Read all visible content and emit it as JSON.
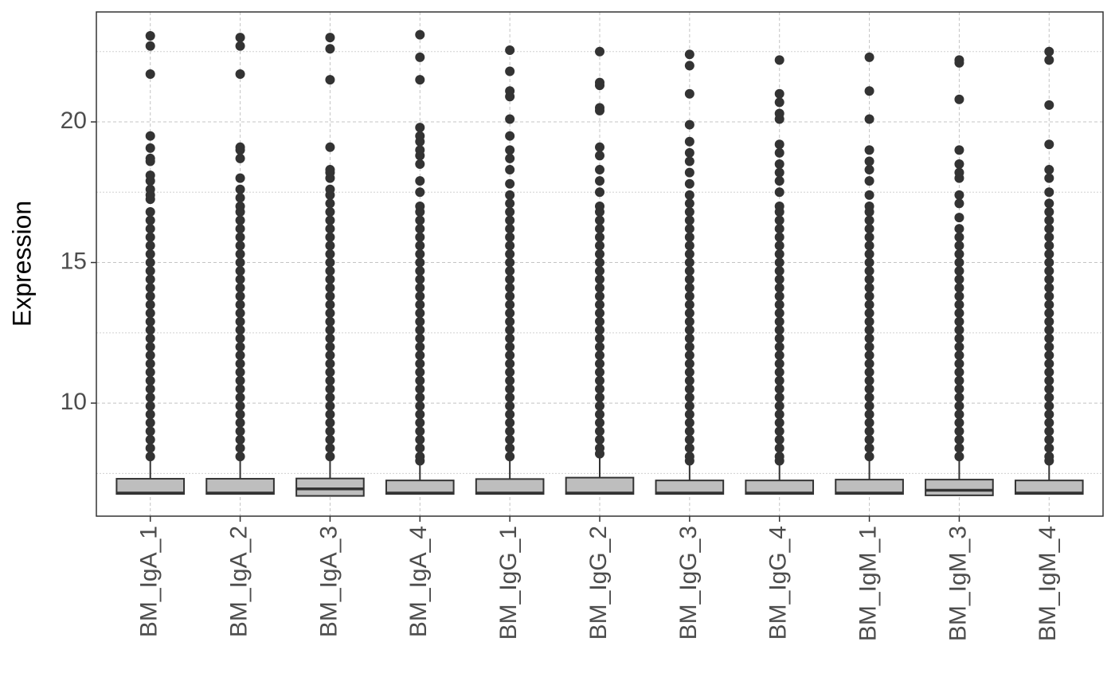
{
  "chart_data": {
    "type": "boxplot",
    "y_label": "Expression",
    "categories": [
      "BM_IgA_1",
      "BM_IgA_2",
      "BM_IgA_3",
      "BM_IgA_4",
      "BM_IgG_1",
      "BM_IgG_2",
      "BM_IgG_3",
      "BM_IgG_4",
      "BM_IgM_1",
      "BM_IgM_3",
      "BM_IgM_4"
    ],
    "min": [
      6.77,
      6.77,
      6.7,
      6.77,
      6.77,
      6.77,
      6.77,
      6.77,
      6.77,
      6.72,
      6.77
    ],
    "q1": [
      6.77,
      6.77,
      6.7,
      6.77,
      6.77,
      6.77,
      6.77,
      6.77,
      6.77,
      6.72,
      6.77
    ],
    "median": [
      6.8,
      6.8,
      6.95,
      6.8,
      6.8,
      6.8,
      6.8,
      6.8,
      6.8,
      6.9,
      6.8
    ],
    "q3": [
      7.31,
      7.31,
      7.32,
      7.25,
      7.3,
      7.35,
      7.25,
      7.25,
      7.28,
      7.28,
      7.25
    ],
    "max": [
      8.05,
      8.05,
      8.05,
      7.95,
      8.05,
      8.15,
      7.95,
      7.95,
      8.05,
      8.05,
      7.95
    ],
    "outliers": [
      [
        8.1,
        8.4,
        8.7,
        9.0,
        9.3,
        9.6,
        9.9,
        10.2,
        10.5,
        10.8,
        11.1,
        11.4,
        11.7,
        12.0,
        12.3,
        12.6,
        12.9,
        13.2,
        13.5,
        13.8,
        14.1,
        14.4,
        14.7,
        15.0,
        15.3,
        15.6,
        15.9,
        16.2,
        16.5,
        16.8,
        17.25,
        17.4,
        17.6,
        17.9,
        18.1,
        18.6,
        18.7,
        19.07,
        19.5,
        21.7,
        22.7,
        23.06
      ],
      [
        8.1,
        8.4,
        8.7,
        9.0,
        9.3,
        9.6,
        9.9,
        10.2,
        10.5,
        10.8,
        11.1,
        11.4,
        11.7,
        12.0,
        12.3,
        12.6,
        12.9,
        13.2,
        13.5,
        13.8,
        14.1,
        14.4,
        14.7,
        15.0,
        15.3,
        15.6,
        15.9,
        16.2,
        16.5,
        16.8,
        17.0,
        17.3,
        17.6,
        18.0,
        18.7,
        19.0,
        19.1,
        21.7,
        22.7,
        23.0
      ],
      [
        8.1,
        8.4,
        8.7,
        9.0,
        9.3,
        9.6,
        9.9,
        10.2,
        10.5,
        10.8,
        11.1,
        11.4,
        11.7,
        12.0,
        12.3,
        12.6,
        12.9,
        13.2,
        13.5,
        13.8,
        14.1,
        14.4,
        14.7,
        15.0,
        15.3,
        15.6,
        15.9,
        16.2,
        16.5,
        16.8,
        17.1,
        17.4,
        17.6,
        18.0,
        18.2,
        18.3,
        19.1,
        21.5,
        22.6,
        23.0
      ],
      [
        7.95,
        8.1,
        8.4,
        8.7,
        9.0,
        9.3,
        9.6,
        9.9,
        10.2,
        10.5,
        10.8,
        11.1,
        11.4,
        11.7,
        12.0,
        12.3,
        12.6,
        12.9,
        13.2,
        13.5,
        13.8,
        14.1,
        14.4,
        14.7,
        15.0,
        15.3,
        15.6,
        15.9,
        16.2,
        16.5,
        16.8,
        17.0,
        17.5,
        17.9,
        18.5,
        18.8,
        19.0,
        19.3,
        19.5,
        19.8,
        21.5,
        22.3,
        23.1
      ],
      [
        8.1,
        8.4,
        8.7,
        9.0,
        9.3,
        9.6,
        9.9,
        10.2,
        10.5,
        10.8,
        11.1,
        11.4,
        11.7,
        12.0,
        12.3,
        12.6,
        12.9,
        13.2,
        13.5,
        13.8,
        14.1,
        14.4,
        14.7,
        15.0,
        15.3,
        15.6,
        15.9,
        16.2,
        16.5,
        16.8,
        17.1,
        17.4,
        17.8,
        18.3,
        18.7,
        19.0,
        19.5,
        20.1,
        20.9,
        21.1,
        21.8,
        22.55
      ],
      [
        8.2,
        8.4,
        8.7,
        9.0,
        9.3,
        9.6,
        9.9,
        10.2,
        10.5,
        10.8,
        11.1,
        11.4,
        11.7,
        12.0,
        12.3,
        12.6,
        12.9,
        13.2,
        13.5,
        13.8,
        14.1,
        14.4,
        14.7,
        15.0,
        15.3,
        15.6,
        15.9,
        16.2,
        16.5,
        16.8,
        17.0,
        17.5,
        17.9,
        18.3,
        18.8,
        19.1,
        20.4,
        20.5,
        21.3,
        21.4,
        22.5
      ],
      [
        7.95,
        8.1,
        8.4,
        8.7,
        9.0,
        9.3,
        9.6,
        9.9,
        10.2,
        10.5,
        10.8,
        11.1,
        11.4,
        11.7,
        12.0,
        12.3,
        12.6,
        12.9,
        13.2,
        13.5,
        13.8,
        14.1,
        14.4,
        14.7,
        15.0,
        15.3,
        15.6,
        15.9,
        16.2,
        16.5,
        16.8,
        17.1,
        17.4,
        17.8,
        18.2,
        18.6,
        18.9,
        19.3,
        19.9,
        21.0,
        22.0,
        22.4
      ],
      [
        7.95,
        8.1,
        8.4,
        8.7,
        9.0,
        9.3,
        9.6,
        9.9,
        10.2,
        10.5,
        10.8,
        11.1,
        11.4,
        11.7,
        12.0,
        12.3,
        12.6,
        12.9,
        13.2,
        13.5,
        13.8,
        14.1,
        14.4,
        14.7,
        15.0,
        15.3,
        15.6,
        15.9,
        16.2,
        16.5,
        16.8,
        17.0,
        17.5,
        17.9,
        18.2,
        18.5,
        18.9,
        19.2,
        20.1,
        20.3,
        20.7,
        21.0,
        22.2
      ],
      [
        8.1,
        8.4,
        8.7,
        9.0,
        9.3,
        9.6,
        9.9,
        10.2,
        10.5,
        10.8,
        11.1,
        11.4,
        11.7,
        12.0,
        12.3,
        12.6,
        12.9,
        13.2,
        13.5,
        13.8,
        14.1,
        14.4,
        14.7,
        15.0,
        15.3,
        15.6,
        15.9,
        16.2,
        16.5,
        16.8,
        17.0,
        17.4,
        17.9,
        18.3,
        18.6,
        19.0,
        20.1,
        21.1,
        22.3
      ],
      [
        8.1,
        8.4,
        8.7,
        9.0,
        9.3,
        9.6,
        9.9,
        10.2,
        10.5,
        10.8,
        11.1,
        11.4,
        11.7,
        12.0,
        12.3,
        12.6,
        12.9,
        13.2,
        13.5,
        13.8,
        14.1,
        14.4,
        14.7,
        15.0,
        15.3,
        15.6,
        15.9,
        16.2,
        16.6,
        17.1,
        17.4,
        18.0,
        18.2,
        18.5,
        19.0,
        20.8,
        22.1,
        22.2
      ],
      [
        7.95,
        8.1,
        8.4,
        8.7,
        9.0,
        9.3,
        9.6,
        9.9,
        10.2,
        10.5,
        10.8,
        11.1,
        11.4,
        11.7,
        12.0,
        12.3,
        12.6,
        12.9,
        13.2,
        13.5,
        13.8,
        14.1,
        14.4,
        14.7,
        15.0,
        15.3,
        15.6,
        15.9,
        16.2,
        16.5,
        16.8,
        17.1,
        17.5,
        18.0,
        18.3,
        19.2,
        20.6,
        22.2,
        22.5
      ]
    ],
    "box_fill": "#bebebe",
    "color": "#333333",
    "ylim": [
      5.98,
      23.91
    ],
    "yticks": [
      10,
      15,
      20
    ],
    "yminor": [
      7.5,
      12.5,
      17.5,
      22.5
    ],
    "grid": true
  }
}
